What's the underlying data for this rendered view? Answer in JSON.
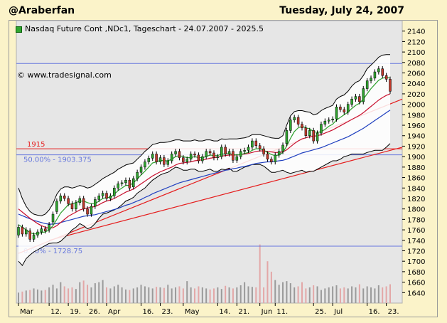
{
  "header": {
    "user": "@Araberfan",
    "date": "Tuesday, July 24, 2007"
  },
  "caption": "Nasdaq Future Cont ,NDc1, Tageschart - 24.07.2007 - 2025.5",
  "copyright": "© www.tradesignal.com",
  "colors": {
    "background": "#fbf3c9",
    "plot": "#e6e6e6",
    "candle_up": "#2fa52f",
    "candle_down": "#c0392b",
    "ma_green": "#2ca02c",
    "ma_red": "#c8102e",
    "ma_blue": "#1f3fbf",
    "band": "#000000",
    "trend": "#e51c1c",
    "fib": "#6677dd"
  },
  "chart_data": {
    "type": "candlestick",
    "title": "Nasdaq Future Cont ,NDc1, Tageschart - 24.07.2007 - 2025.5",
    "ylim": [
      1620,
      2160
    ],
    "y_ticks": [
      1640,
      1660,
      1680,
      1700,
      1720,
      1740,
      1760,
      1780,
      1800,
      1820,
      1840,
      1860,
      1880,
      1900,
      1920,
      1940,
      1960,
      1980,
      2000,
      2020,
      2040,
      2060,
      2080,
      2100,
      2120,
      2140
    ],
    "x_labels": [
      "Mar",
      "12.",
      "19.",
      "26.",
      "Apr",
      "16.",
      "23.",
      "May",
      "14.",
      "21.",
      "Jun",
      "11.",
      "25.",
      "Jul",
      "16.",
      "23."
    ],
    "x_label_index": [
      0,
      8,
      13,
      18,
      23,
      32,
      37,
      43,
      52,
      57,
      63,
      67,
      77,
      82,
      91,
      96
    ],
    "horizontal_lines": [
      {
        "label": "1915",
        "value": 1915,
        "color": "#e51c1c"
      },
      {
        "label": "50.00% - 1903.375",
        "value": 1903.375,
        "color": "#6677dd"
      },
      {
        "label": "0.00% - 1728.75",
        "value": 1728.75,
        "color": "#6677dd"
      },
      {
        "label": "",
        "value": 2078,
        "color": "#6677dd"
      }
    ],
    "trendlines": [
      {
        "from": [
          0,
          1715
        ],
        "to": [
          122,
          2010
        ]
      },
      {
        "from": [
          8,
          1740
        ],
        "to": [
          122,
          1918
        ]
      }
    ],
    "volume_ylim": [
      1620,
      1740
    ],
    "closes": [
      1765,
      1752,
      1760,
      1742,
      1750,
      1756,
      1762,
      1758,
      1770,
      1790,
      1815,
      1825,
      1820,
      1810,
      1800,
      1812,
      1820,
      1800,
      1790,
      1805,
      1818,
      1825,
      1830,
      1820,
      1825,
      1840,
      1848,
      1850,
      1855,
      1840,
      1858,
      1870,
      1880,
      1890,
      1897,
      1905,
      1890,
      1898,
      1885,
      1892,
      1905,
      1910,
      1898,
      1890,
      1895,
      1905,
      1903,
      1892,
      1900,
      1910,
      1907,
      1898,
      1900,
      1918,
      1905,
      1910,
      1893,
      1900,
      1910,
      1912,
      1918,
      1930,
      1921,
      1915,
      1905,
      1895,
      1890,
      1903,
      1910,
      1922,
      1950,
      1970,
      1975,
      1962,
      1955,
      1940,
      1950,
      1930,
      1945,
      1962,
      1968,
      1970,
      1972,
      1995,
      1990,
      1985,
      2000,
      2010,
      2015,
      2005,
      2030,
      2045,
      2050,
      2062,
      2068,
      2055,
      2048,
      2025
    ],
    "opens": [
      1750,
      1765,
      1752,
      1758,
      1742,
      1750,
      1756,
      1762,
      1760,
      1775,
      1795,
      1815,
      1825,
      1820,
      1810,
      1800,
      1812,
      1820,
      1800,
      1790,
      1805,
      1818,
      1825,
      1830,
      1820,
      1825,
      1840,
      1848,
      1850,
      1855,
      1842,
      1858,
      1870,
      1880,
      1890,
      1897,
      1905,
      1890,
      1898,
      1885,
      1892,
      1905,
      1910,
      1898,
      1890,
      1895,
      1905,
      1903,
      1892,
      1900,
      1910,
      1907,
      1898,
      1900,
      1918,
      1905,
      1910,
      1893,
      1900,
      1910,
      1912,
      1918,
      1930,
      1921,
      1915,
      1905,
      1895,
      1890,
      1903,
      1910,
      1925,
      1950,
      1970,
      1975,
      1962,
      1955,
      1940,
      1950,
      1930,
      1945,
      1962,
      1968,
      1970,
      1972,
      1995,
      1990,
      1985,
      2000,
      2010,
      2015,
      2005,
      2030,
      2045,
      2050,
      2062,
      2068,
      2055,
      2048
    ],
    "bb_upper": [
      1840,
      1820,
      1805,
      1795,
      1790,
      1788,
      1787,
      1790,
      1798,
      1810,
      1828,
      1838,
      1842,
      1842,
      1840,
      1842,
      1845,
      1843,
      1840,
      1842,
      1847,
      1852,
      1858,
      1862,
      1866,
      1870,
      1876,
      1880,
      1884,
      1886,
      1888,
      1895,
      1902,
      1910,
      1916,
      1923,
      1925,
      1927,
      1927,
      1928,
      1930,
      1932,
      1932,
      1930,
      1930,
      1930,
      1932,
      1930,
      1930,
      1932,
      1932,
      1930,
      1930,
      1934,
      1933,
      1934,
      1934,
      1934,
      1935,
      1936,
      1938,
      1942,
      1942,
      1942,
      1940,
      1938,
      1936,
      1935,
      1935,
      1940,
      1960,
      1978,
      1986,
      1988,
      1988,
      1986,
      1985,
      1980,
      1982,
      1988,
      1992,
      1995,
      1998,
      2010,
      2015,
      2018,
      2025,
      2035,
      2042,
      2045,
      2055,
      2068,
      2075,
      2082,
      2090,
      2094,
      2095,
      2095
    ],
    "bb_lower": [
      1700,
      1692,
      1705,
      1712,
      1718,
      1722,
      1726,
      1730,
      1734,
      1735,
      1735,
      1738,
      1745,
      1752,
      1760,
      1765,
      1772,
      1768,
      1762,
      1765,
      1772,
      1782,
      1790,
      1792,
      1795,
      1798,
      1802,
      1808,
      1815,
      1818,
      1822,
      1830,
      1835,
      1840,
      1848,
      1855,
      1860,
      1865,
      1868,
      1870,
      1875,
      1880,
      1878,
      1874,
      1874,
      1876,
      1876,
      1872,
      1872,
      1874,
      1876,
      1872,
      1872,
      1876,
      1875,
      1878,
      1872,
      1872,
      1876,
      1880,
      1882,
      1885,
      1885,
      1885,
      1882,
      1876,
      1870,
      1870,
      1872,
      1874,
      1870,
      1868,
      1870,
      1872,
      1874,
      1870,
      1872,
      1872,
      1876,
      1880,
      1884,
      1888,
      1892,
      1892,
      1895,
      1900,
      1902,
      1905,
      1905,
      1905,
      1905,
      1908,
      1910,
      1912,
      1912,
      1912,
      1918,
      1925
    ],
    "ma_fast": [
      1770,
      1765,
      1760,
      1755,
      1752,
      1753,
      1755,
      1756,
      1760,
      1768,
      1780,
      1792,
      1800,
      1808,
      1810,
      1812,
      1815,
      1815,
      1812,
      1810,
      1810,
      1815,
      1820,
      1822,
      1822,
      1828,
      1835,
      1840,
      1845,
      1845,
      1850,
      1857,
      1865,
      1872,
      1880,
      1888,
      1890,
      1893,
      1892,
      1892,
      1895,
      1900,
      1902,
      1900,
      1898,
      1898,
      1900,
      1898,
      1898,
      1900,
      1903,
      1902,
      1902,
      1905,
      1905,
      1906,
      1904,
      1903,
      1904,
      1906,
      1908,
      1912,
      1915,
      1915,
      1912,
      1908,
      1904,
      1902,
      1903,
      1908,
      1920,
      1935,
      1948,
      1955,
      1958,
      1955,
      1953,
      1948,
      1946,
      1948,
      1952,
      1958,
      1962,
      1970,
      1975,
      1980,
      1985,
      1992,
      1998,
      2002,
      2010,
      2020,
      2030,
      2038,
      2046,
      2050,
      2052,
      2050
    ],
    "ma_mid": [
      1800,
      1794,
      1788,
      1782,
      1777,
      1772,
      1768,
      1765,
      1763,
      1764,
      1768,
      1774,
      1780,
      1786,
      1790,
      1794,
      1798,
      1800,
      1802,
      1803,
      1805,
      1808,
      1812,
      1815,
      1817,
      1820,
      1824,
      1828,
      1832,
      1835,
      1838,
      1843,
      1848,
      1853,
      1858,
      1863,
      1867,
      1871,
      1874,
      1877,
      1880,
      1884,
      1887,
      1888,
      1889,
      1890,
      1892,
      1893,
      1894,
      1895,
      1897,
      1898,
      1899,
      1901,
      1902,
      1903,
      1903,
      1903,
      1904,
      1905,
      1906,
      1908,
      1910,
      1911,
      1911,
      1910,
      1909,
      1908,
      1908,
      1909,
      1913,
      1919,
      1925,
      1930,
      1934,
      1936,
      1938,
      1939,
      1940,
      1942,
      1945,
      1948,
      1951,
      1955,
      1959,
      1963,
      1967,
      1971,
      1975,
      1979,
      1984,
      1990,
      1996,
      2002,
      2008,
      2013,
      2017,
      2020
    ],
    "ma_slow": [
      1790,
      1787,
      1784,
      1781,
      1778,
      1776,
      1774,
      1772,
      1771,
      1771,
      1772,
      1774,
      1776,
      1778,
      1780,
      1782,
      1784,
      1786,
      1787,
      1788,
      1789,
      1791,
      1793,
      1795,
      1797,
      1799,
      1801,
      1804,
      1807,
      1809,
      1812,
      1815,
      1818,
      1822,
      1825,
      1829,
      1832,
      1835,
      1838,
      1841,
      1844,
      1847,
      1850,
      1852,
      1854,
      1856,
      1858,
      1860,
      1862,
      1864,
      1866,
      1868,
      1870,
      1872,
      1874,
      1875,
      1877,
      1878,
      1880,
      1881,
      1883,
      1885,
      1887,
      1888,
      1889,
      1890,
      1890,
      1891,
      1892,
      1893,
      1895,
      1898,
      1901,
      1904,
      1907,
      1909,
      1911,
      1913,
      1915,
      1917,
      1920,
      1923,
      1926,
      1929,
      1932,
      1935,
      1938,
      1942,
      1946,
      1950,
      1954,
      1959,
      1964,
      1969,
      1974,
      1979,
      1984,
      1989
    ],
    "volume": [
      1640,
      1642,
      1644,
      1645,
      1648,
      1646,
      1644,
      1645,
      1650,
      1655,
      1648,
      1660,
      1652,
      1648,
      1650,
      1647,
      1660,
      1663,
      1655,
      1650,
      1658,
      1660,
      1664,
      1650,
      1648,
      1652,
      1655,
      1650,
      1646,
      1645,
      1648,
      1650,
      1655,
      1652,
      1650,
      1648,
      1651,
      1650,
      1649,
      1655,
      1648,
      1650,
      1652,
      1648,
      1662,
      1650,
      1648,
      1652,
      1650,
      1648,
      1646,
      1648,
      1650,
      1647,
      1653,
      1650,
      1648,
      1650,
      1654,
      1660,
      1652,
      1651,
      1650,
      1732,
      1650,
      1700,
      1680,
      1664,
      1655,
      1660,
      1662,
      1658,
      1650,
      1652,
      1660,
      1648,
      1650,
      1654,
      1652,
      1645,
      1648,
      1650,
      1652,
      1654,
      1648,
      1650,
      1648,
      1652,
      1650,
      1656,
      1648,
      1652,
      1650,
      1648,
      1654,
      1650,
      1652,
      1656
    ]
  }
}
